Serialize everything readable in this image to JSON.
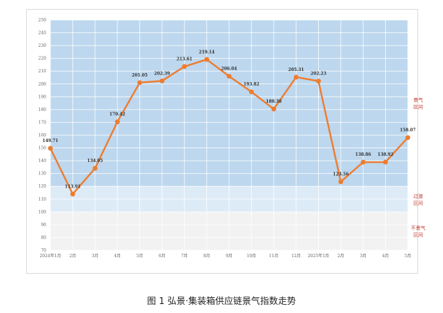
{
  "caption": "图 1 弘景·集装箱供应链景气指数走势",
  "chart_data": {
    "type": "line",
    "title": "",
    "xlabel": "",
    "ylabel": "",
    "categories": [
      "2024年1月",
      "2月",
      "3月",
      "4月",
      "5月",
      "6月",
      "7月",
      "8月",
      "9月",
      "10月",
      "11月",
      "12月",
      "2025年1月",
      "2月",
      "3月",
      "4月",
      "5月"
    ],
    "values": [
      149.71,
      113.91,
      134.05,
      170.42,
      201.05,
      202.39,
      213.61,
      219.14,
      206.04,
      193.82,
      180.38,
      205.31,
      202.23,
      123.56,
      138.86,
      138.92,
      158.07
    ],
    "data_labels": [
      "149.71",
      "113.91",
      "134.05",
      "170.42",
      "201.05",
      "202.39",
      "213.61",
      "219.14",
      "206.04",
      "193.82",
      "180.38",
      "205.31",
      "202.23",
      "123.56",
      "138.86",
      "138.92",
      "158.07"
    ],
    "ylim": [
      70,
      250
    ],
    "yticks": [
      70,
      80,
      90,
      100,
      110,
      120,
      130,
      140,
      150,
      160,
      170,
      180,
      190,
      200,
      210,
      220,
      230,
      240,
      250
    ],
    "grid": true,
    "line_color": "#ed7d31",
    "zones": [
      {
        "label_line1": "景气",
        "label_line2": "区间",
        "from": 120,
        "to": 250,
        "color": "#bdd7ee"
      },
      {
        "label_line1": "过渡",
        "label_line2": "区间",
        "from": 100,
        "to": 120,
        "color": "#ddebf7"
      },
      {
        "label_line1": "不景气",
        "label_line2": "区间",
        "from": 70,
        "to": 100,
        "color": "#f2f2f2"
      }
    ],
    "zone_label_color": "#c0392b"
  }
}
